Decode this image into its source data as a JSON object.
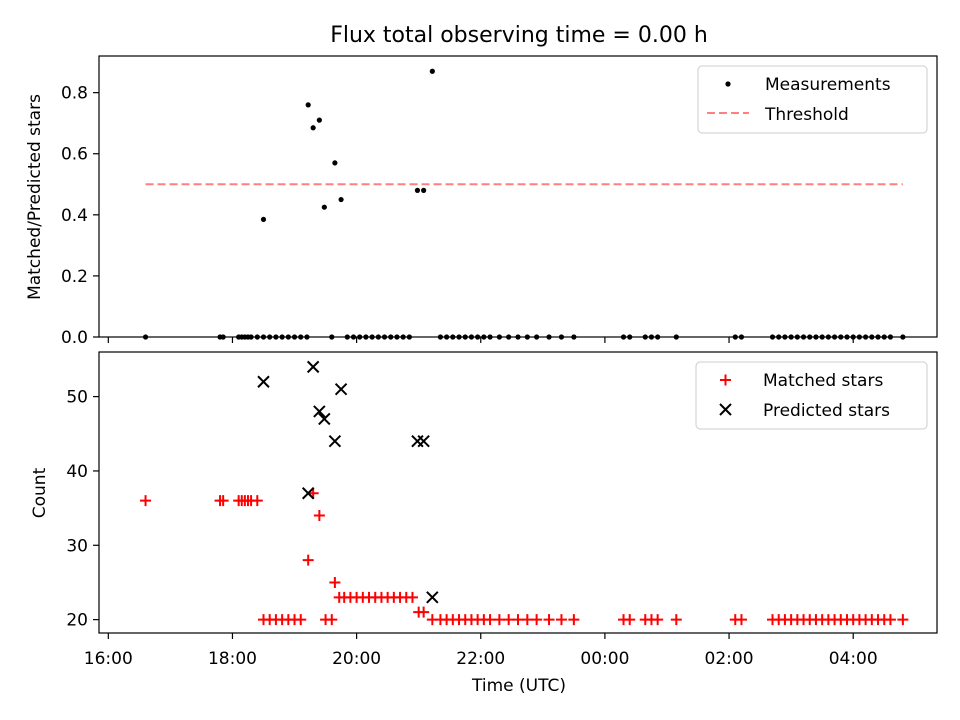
{
  "title": "Flux total observing time = 0.00 h",
  "xlabel": "Time (UTC)",
  "x_ticks": [
    "16:00",
    "18:00",
    "20:00",
    "22:00",
    "00:00",
    "02:00",
    "04:00"
  ],
  "colors": {
    "threshold": "#ff8080",
    "matched": "#ff0000",
    "predicted": "#000000",
    "measurement": "#000000"
  },
  "chart_data": [
    {
      "type": "scatter",
      "ylabel": "Matched/Predicted stars",
      "ylim": [
        0,
        0.92
      ],
      "y_ticks": [
        "0.0",
        "0.2",
        "0.4",
        "0.6",
        "0.8"
      ],
      "xlim_hours": [
        15.85,
        29.35
      ],
      "legend": {
        "placement": "top-right",
        "entries": [
          "Measurements",
          "Threshold"
        ]
      },
      "threshold": {
        "name": "Threshold",
        "value": 0.5,
        "x_range": [
          16.6,
          28.8
        ]
      },
      "series": [
        {
          "name": "Measurements",
          "x": [
            18.5,
            19.22,
            19.3,
            19.4,
            19.48,
            19.65,
            19.75,
            20.98,
            21.08,
            21.22
          ],
          "y": [
            0.385,
            0.76,
            0.685,
            0.71,
            0.425,
            0.57,
            0.45,
            0.48,
            0.48,
            0.87
          ]
        },
        {
          "name": "Measurements (zero)",
          "x": [
            16.6,
            17.8,
            17.85,
            18.1,
            18.15,
            18.2,
            18.25,
            18.3,
            18.4,
            18.5,
            18.6,
            18.7,
            18.8,
            18.9,
            19.0,
            19.1,
            19.2,
            19.6,
            19.85,
            19.95,
            20.05,
            20.15,
            20.25,
            20.35,
            20.45,
            20.55,
            20.65,
            20.75,
            20.85,
            21.35,
            21.45,
            21.55,
            21.65,
            21.75,
            21.85,
            21.95,
            22.05,
            22.15,
            22.3,
            22.45,
            22.6,
            22.75,
            22.9,
            23.1,
            23.3,
            23.5,
            24.3,
            24.4,
            24.65,
            24.75,
            24.85,
            25.15,
            26.1,
            26.2,
            26.7,
            26.8,
            26.9,
            27.0,
            27.1,
            27.2,
            27.3,
            27.4,
            27.5,
            27.6,
            27.7,
            27.8,
            27.9,
            28.0,
            28.1,
            28.2,
            28.3,
            28.4,
            28.5,
            28.6,
            28.8
          ],
          "y_value": 0.0
        }
      ]
    },
    {
      "type": "scatter",
      "ylabel": "Count",
      "ylim": [
        18.2,
        56
      ],
      "y_ticks": [
        "20",
        "30",
        "40",
        "50"
      ],
      "xlim_hours": [
        15.85,
        29.35
      ],
      "legend": {
        "placement": "top-right",
        "entries": [
          "Matched stars",
          "Predicted stars"
        ]
      },
      "series": [
        {
          "name": "Matched stars",
          "x": [
            16.6,
            17.8,
            17.85,
            18.1,
            18.15,
            18.2,
            18.25,
            18.3,
            18.4,
            19.22,
            19.3,
            19.4,
            19.65,
            21.0,
            21.08
          ],
          "y": [
            36,
            36,
            36,
            36,
            36,
            36,
            36,
            36,
            36,
            28,
            37,
            34,
            25,
            21,
            21
          ]
        },
        {
          "name": "Matched stars (floor)",
          "x": [
            18.5,
            18.6,
            18.7,
            18.8,
            18.9,
            19.0,
            19.1,
            19.5,
            19.6,
            19.72,
            19.8,
            19.9,
            20.0,
            20.1,
            20.2,
            20.3,
            20.4,
            20.5,
            20.6,
            20.7,
            20.8,
            20.9,
            21.22,
            21.35,
            21.45,
            21.55,
            21.65,
            21.75,
            21.85,
            21.95,
            22.05,
            22.15,
            22.3,
            22.45,
            22.6,
            22.75,
            22.9,
            23.1,
            23.3,
            23.5,
            24.3,
            24.4,
            24.65,
            24.75,
            24.85,
            25.15,
            26.1,
            26.2,
            26.7,
            26.8,
            26.9,
            27.0,
            27.1,
            27.2,
            27.3,
            27.4,
            27.5,
            27.6,
            27.7,
            27.8,
            27.9,
            28.0,
            28.1,
            28.2,
            28.3,
            28.4,
            28.5,
            28.6,
            28.8
          ],
          "y": [
            20,
            20,
            20,
            20,
            20,
            20,
            20,
            20,
            20,
            23,
            23,
            23,
            23,
            23,
            23,
            23,
            23,
            23,
            23,
            23,
            23,
            23,
            20,
            20,
            20,
            20,
            20,
            20,
            20,
            20,
            20,
            20,
            20,
            20,
            20,
            20,
            20,
            20,
            20,
            20,
            20,
            20,
            20,
            20,
            20,
            20,
            20,
            20,
            20,
            20,
            20,
            20,
            20,
            20,
            20,
            20,
            20,
            20,
            20,
            20,
            20,
            20,
            20,
            20,
            20,
            20,
            20,
            20,
            20
          ]
        },
        {
          "name": "Predicted stars",
          "x": [
            18.5,
            19.22,
            19.3,
            19.4,
            19.48,
            19.65,
            19.75,
            20.98,
            21.08,
            21.22
          ],
          "y": [
            52,
            37,
            54,
            48,
            47,
            44,
            51,
            44,
            44,
            23
          ]
        }
      ]
    }
  ]
}
